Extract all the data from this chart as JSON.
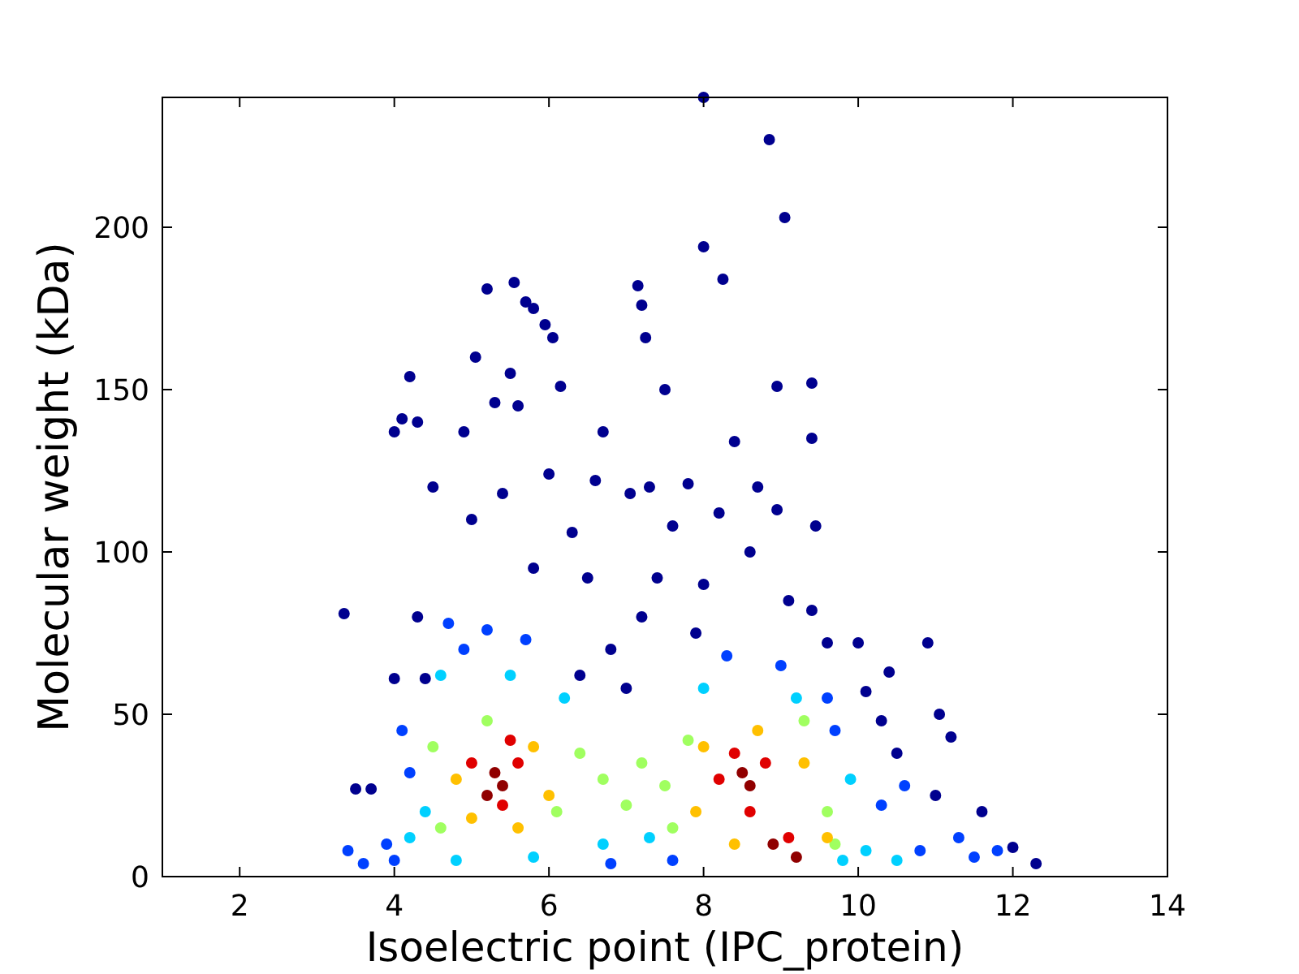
{
  "chart_data": {
    "type": "scatter",
    "xlabel": "Isoelectric point (IPC_protein)",
    "ylabel": "Molecular weight (kDa)",
    "xlim": [
      1,
      14
    ],
    "xticks": [
      2,
      4,
      6,
      8,
      10,
      12,
      14
    ],
    "ylim": [
      0,
      240
    ],
    "yticks": [
      0,
      50,
      100,
      150,
      200
    ],
    "grid": false,
    "marker": "circle",
    "series": [
      {
        "color": "#00008f",
        "x": [
          3.35,
          8.0,
          8.85,
          9.05,
          8.0,
          8.25,
          5.55,
          5.2,
          7.15,
          7.2,
          5.8,
          5.7,
          7.25,
          5.95,
          6.05,
          7.5,
          4.2,
          4.1,
          4.3,
          4.0,
          8.95,
          9.4,
          9.4,
          5.05,
          5.5,
          5.3,
          4.9,
          5.6,
          6.15,
          8.4,
          6.7,
          7.05,
          7.3,
          7.8,
          8.7,
          8.95,
          9.45,
          10.9,
          10.4,
          11.05,
          9.1,
          9.4,
          6.3,
          6.6,
          7.6,
          8.2,
          5.0,
          5.4,
          4.5,
          6.0,
          5.8,
          6.5,
          7.4,
          8.0,
          8.6,
          9.6,
          10.1,
          10.0,
          11.2,
          11.6,
          12.3,
          12.0,
          4.3,
          4.4,
          4.0,
          3.5,
          3.7,
          6.8,
          7.2,
          7.9,
          7.0,
          6.4,
          10.5,
          10.3,
          11.0
        ],
        "values": [
          81,
          240,
          227,
          203,
          194,
          184,
          183,
          181,
          182,
          176,
          175,
          177,
          166,
          170,
          166,
          150,
          154,
          141,
          140,
          137,
          151,
          152,
          135,
          160,
          155,
          146,
          137,
          145,
          151,
          134,
          137,
          118,
          120,
          121,
          120,
          113,
          108,
          72,
          63,
          50,
          85,
          82,
          106,
          122,
          108,
          112,
          110,
          118,
          120,
          124,
          95,
          92,
          92,
          90,
          100,
          72,
          57,
          72,
          43,
          20,
          4,
          9,
          80,
          61,
          61,
          27,
          27,
          70,
          80,
          75,
          58,
          62,
          38,
          48,
          25
        ]
      },
      {
        "color": "#0040ff",
        "x": [
          4.7,
          5.2,
          5.7,
          4.9,
          9.0,
          8.3,
          9.6,
          9.7,
          4.1,
          4.2,
          10.3,
          10.6,
          11.3,
          11.8,
          3.4,
          3.6,
          4.0,
          6.8,
          7.6,
          10.8,
          11.5,
          3.9
        ],
        "values": [
          78,
          76,
          73,
          70,
          65,
          68,
          55,
          45,
          45,
          32,
          22,
          28,
          12,
          8,
          8,
          4,
          5,
          4,
          5,
          8,
          6,
          10
        ]
      },
      {
        "color": "#00d0ff",
        "x": [
          4.6,
          5.5,
          6.2,
          8.0,
          9.2,
          4.4,
          4.2,
          9.9,
          10.1,
          6.7,
          5.8,
          4.8,
          7.3,
          9.8,
          10.5
        ],
        "values": [
          62,
          62,
          55,
          58,
          55,
          20,
          12,
          30,
          8,
          10,
          6,
          5,
          12,
          5,
          5
        ]
      },
      {
        "color": "#a0ff60",
        "x": [
          4.5,
          6.4,
          6.7,
          7.0,
          7.2,
          7.5,
          6.1,
          7.8,
          9.6,
          4.6,
          7.6,
          9.3,
          5.2,
          9.7
        ],
        "values": [
          40,
          38,
          30,
          22,
          35,
          28,
          20,
          42,
          20,
          15,
          15,
          48,
          48,
          10
        ]
      },
      {
        "color": "#ffc000",
        "x": [
          4.8,
          5.8,
          6.0,
          5.0,
          8.0,
          7.9,
          9.3,
          9.6,
          8.4,
          5.6,
          8.7
        ],
        "values": [
          30,
          40,
          25,
          18,
          40,
          20,
          35,
          12,
          10,
          15,
          45
        ]
      },
      {
        "color": "#e00000",
        "x": [
          5.0,
          5.6,
          5.4,
          8.2,
          8.8,
          8.6,
          9.1,
          5.5,
          8.4
        ],
        "values": [
          35,
          35,
          22,
          30,
          35,
          20,
          12,
          42,
          38
        ]
      },
      {
        "color": "#900000",
        "x": [
          5.3,
          5.4,
          8.6,
          8.9,
          8.5,
          9.2,
          5.2
        ],
        "values": [
          32,
          28,
          28,
          10,
          32,
          6,
          25
        ]
      }
    ]
  }
}
